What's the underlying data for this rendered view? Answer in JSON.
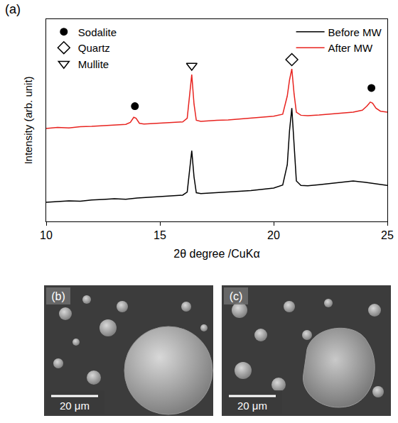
{
  "chart_data": {
    "type": "line",
    "annotations": [
      "(a)"
    ],
    "x_label": "2θ degree /CuKα",
    "y_label": "Intensity (arb. unit)",
    "xlim": [
      10,
      25
    ],
    "xticks": [
      10,
      15,
      20,
      25
    ],
    "ylim": [
      0,
      100
    ],
    "yticks": [],
    "tick_labels": "x",
    "grid": false,
    "legend": "top",
    "series": [
      {
        "name": "Before MW",
        "color": "#000000",
        "line_style": "solid",
        "x": [
          10,
          10.5,
          11,
          11.5,
          12,
          12.5,
          13,
          13.5,
          14,
          14.5,
          15,
          15.5,
          16,
          16.2,
          16.3,
          16.4,
          16.5,
          16.6,
          16.8,
          17,
          17.5,
          18,
          18.5,
          19,
          19.5,
          20,
          20.4,
          20.6,
          20.7,
          20.8,
          20.9,
          21.0,
          21.2,
          21.5,
          22,
          22.5,
          23,
          23.5,
          24,
          24.5,
          25
        ],
        "values": [
          9.5,
          9.8,
          10.2,
          10.0,
          10.6,
          10.9,
          11.2,
          11.0,
          11.6,
          11.9,
          12.2,
          12.5,
          13.0,
          14.5,
          24,
          35,
          22,
          14.2,
          13.8,
          13.9,
          14.2,
          14.5,
          14.9,
          15.3,
          15.8,
          16.5,
          18,
          28,
          45,
          56,
          38,
          20,
          17.8,
          17.6,
          18.2,
          18.8,
          19.3,
          20.0,
          19.4,
          18.6,
          17.8
        ]
      },
      {
        "name": "After MW",
        "color": "#e8231f",
        "line_style": "solid",
        "x": [
          10,
          10.5,
          11,
          11.5,
          12,
          12.5,
          13,
          13.5,
          13.7,
          13.85,
          13.95,
          14.1,
          14.3,
          14.5,
          15,
          15.5,
          16,
          16.2,
          16.3,
          16.4,
          16.5,
          16.6,
          16.8,
          17,
          17.5,
          18,
          18.5,
          19,
          19.5,
          20,
          20.4,
          20.6,
          20.7,
          20.8,
          20.9,
          21.0,
          21.2,
          21.5,
          22,
          22.5,
          23,
          23.5,
          23.9,
          24.1,
          24.25,
          24.35,
          24.5,
          24.7,
          25
        ],
        "values": [
          46,
          46.5,
          46.2,
          46.8,
          47,
          47.3,
          47.5,
          48,
          49,
          51.5,
          51,
          48.5,
          48.2,
          48.3,
          48.6,
          48.8,
          49.2,
          51,
          62,
          72.6,
          58,
          50,
          49.5,
          49.7,
          50,
          50.2,
          50.6,
          51,
          51.4,
          52,
          53,
          62,
          70,
          75.4,
          63,
          54,
          52.5,
          52.3,
          52.6,
          53,
          53.4,
          54,
          55,
          57,
          59,
          58.5,
          56,
          54.5,
          54
        ]
      }
    ],
    "phases": [
      {
        "name": "Sodalite",
        "marker": "circle",
        "color": "#000000",
        "x": [
          13.9,
          24.3
        ],
        "values": [
          57,
          66
        ]
      },
      {
        "name": "Quartz",
        "marker": "diamond-open",
        "color": "#000000",
        "x": [
          20.8
        ],
        "values": [
          80
        ]
      },
      {
        "name": "Mullite",
        "marker": "triangle-down-open",
        "color": "#000000",
        "x": [
          16.4
        ],
        "values": [
          77
        ]
      }
    ]
  },
  "images": [
    {
      "label": "(b)",
      "scale_bar": "20 μm"
    },
    {
      "label": "(c)",
      "scale_bar": "20 μm"
    }
  ]
}
